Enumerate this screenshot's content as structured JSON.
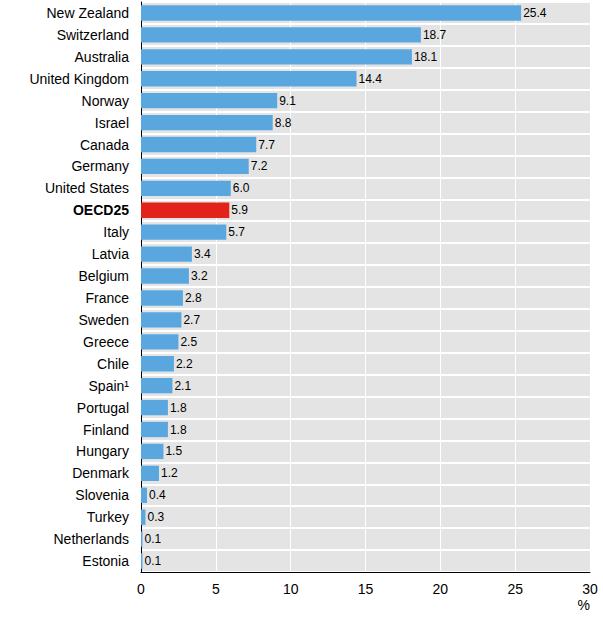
{
  "chart_data": {
    "type": "bar",
    "orientation": "horizontal",
    "categories": [
      "New Zealand",
      "Switzerland",
      "Australia",
      "United Kingdom",
      "Norway",
      "Israel",
      "Canada",
      "Germany",
      "United States",
      "OECD25",
      "Italy",
      "Latvia",
      "Belgium",
      "France",
      "Sweden",
      "Greece",
      "Chile",
      "Spain¹",
      "Portugal",
      "Finland",
      "Hungary",
      "Denmark",
      "Slovenia",
      "Turkey",
      "Netherlands",
      "Estonia"
    ],
    "values": [
      25.4,
      18.7,
      18.1,
      14.4,
      9.1,
      8.8,
      7.7,
      7.2,
      6.0,
      5.9,
      5.7,
      3.4,
      3.2,
      2.8,
      2.7,
      2.5,
      2.2,
      2.1,
      1.8,
      1.8,
      1.5,
      1.2,
      0.4,
      0.3,
      0.1,
      0.1
    ],
    "value_labels": [
      "25.4",
      "18.7",
      "18.1",
      "14.4",
      "9.1",
      "8.8",
      "7.7",
      "7.2",
      "6.0",
      "5.9",
      "5.7",
      "3.4",
      "3.2",
      "2.8",
      "2.7",
      "2.5",
      "2.2",
      "2.1",
      "1.8",
      "1.8",
      "1.5",
      "1.2",
      "0.4",
      "0.3",
      "0.1",
      "0.1"
    ],
    "colors": [
      "#5aa7e0",
      "#5aa7e0",
      "#5aa7e0",
      "#5aa7e0",
      "#5aa7e0",
      "#5aa7e0",
      "#5aa7e0",
      "#5aa7e0",
      "#5aa7e0",
      "#e2231a",
      "#5aa7e0",
      "#5aa7e0",
      "#5aa7e0",
      "#5aa7e0",
      "#5aa7e0",
      "#5aa7e0",
      "#5aa7e0",
      "#5aa7e0",
      "#5aa7e0",
      "#5aa7e0",
      "#5aa7e0",
      "#5aa7e0",
      "#5aa7e0",
      "#5aa7e0",
      "#5aa7e0",
      "#5aa7e0"
    ],
    "xlabel": "%",
    "xlim": [
      0,
      30
    ],
    "xticks": [
      0,
      5,
      10,
      15,
      20,
      25,
      30
    ],
    "grid": true,
    "data_labels": true
  }
}
